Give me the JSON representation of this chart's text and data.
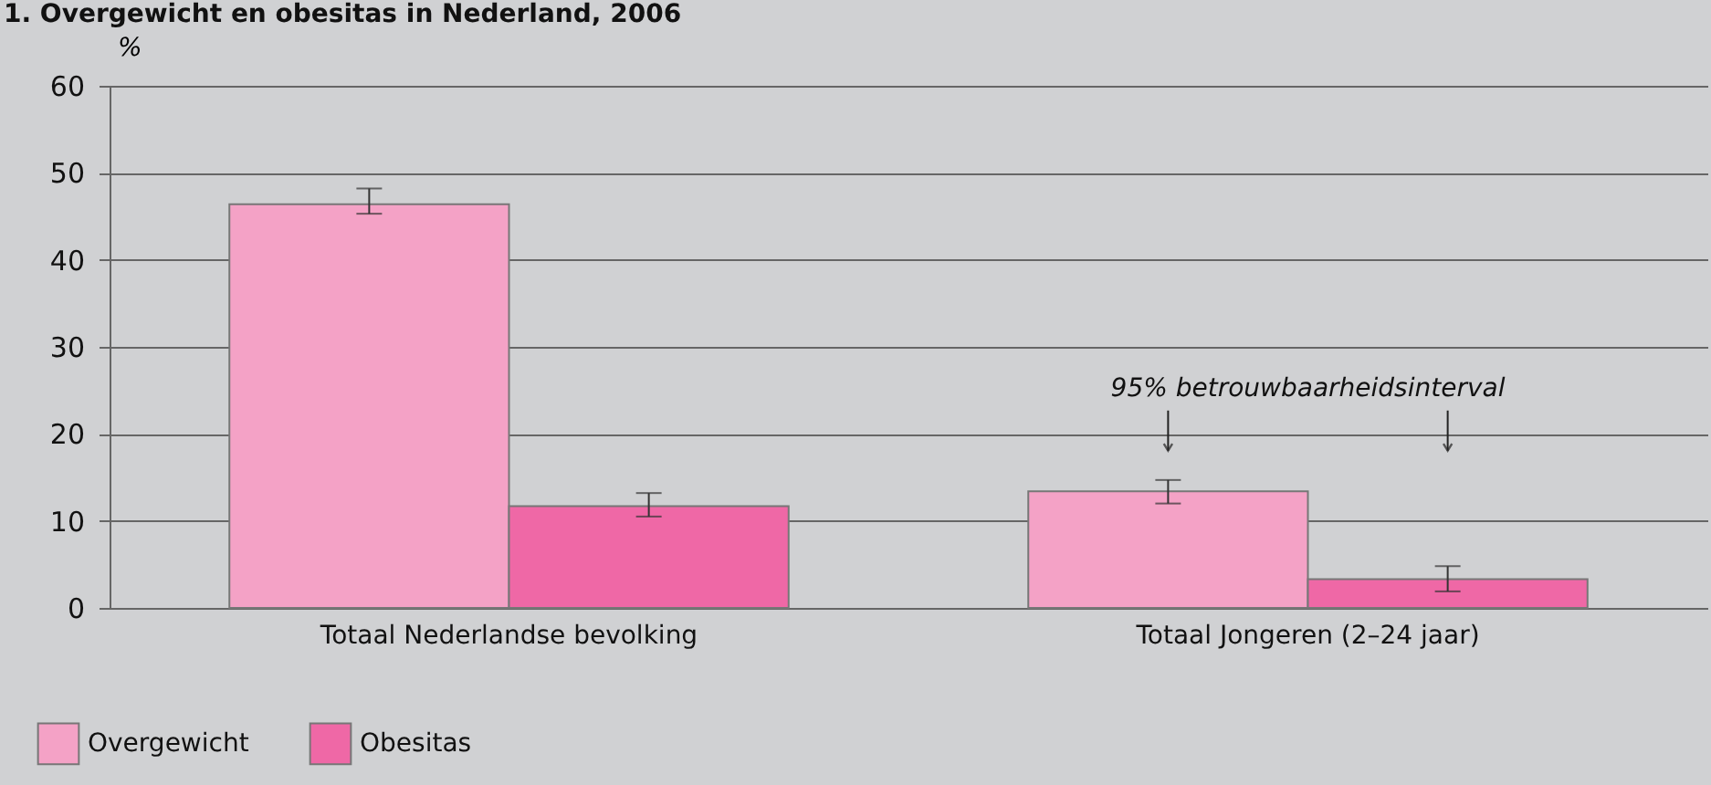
{
  "chart_data": {
    "type": "bar",
    "title": "1. Overgewicht en obesitas in Nederland, 2006",
    "ylabel": "%",
    "categories": [
      "Totaal Nederlandse bevolking",
      "Totaal Jongeren (2–24 jaar)"
    ],
    "series": [
      {
        "name": "Overgewicht",
        "color": "#f4a2c6",
        "values": [
          46.4,
          13.4
        ],
        "errors": [
          [
            45.3,
            48.2
          ],
          [
            12.0,
            14.7
          ]
        ]
      },
      {
        "name": "Obesitas",
        "color": "#ef68a6",
        "values": [
          11.7,
          3.3
        ],
        "errors": [
          [
            10.5,
            13.2
          ],
          [
            1.9,
            4.8
          ]
        ]
      }
    ],
    "ylim": [
      0,
      60
    ],
    "yticks": [
      0,
      10,
      20,
      30,
      40,
      50,
      60
    ],
    "grid": "y",
    "legend": "bottom left",
    "annotations": [
      "95% betrouwbaarheidsinterval"
    ]
  }
}
